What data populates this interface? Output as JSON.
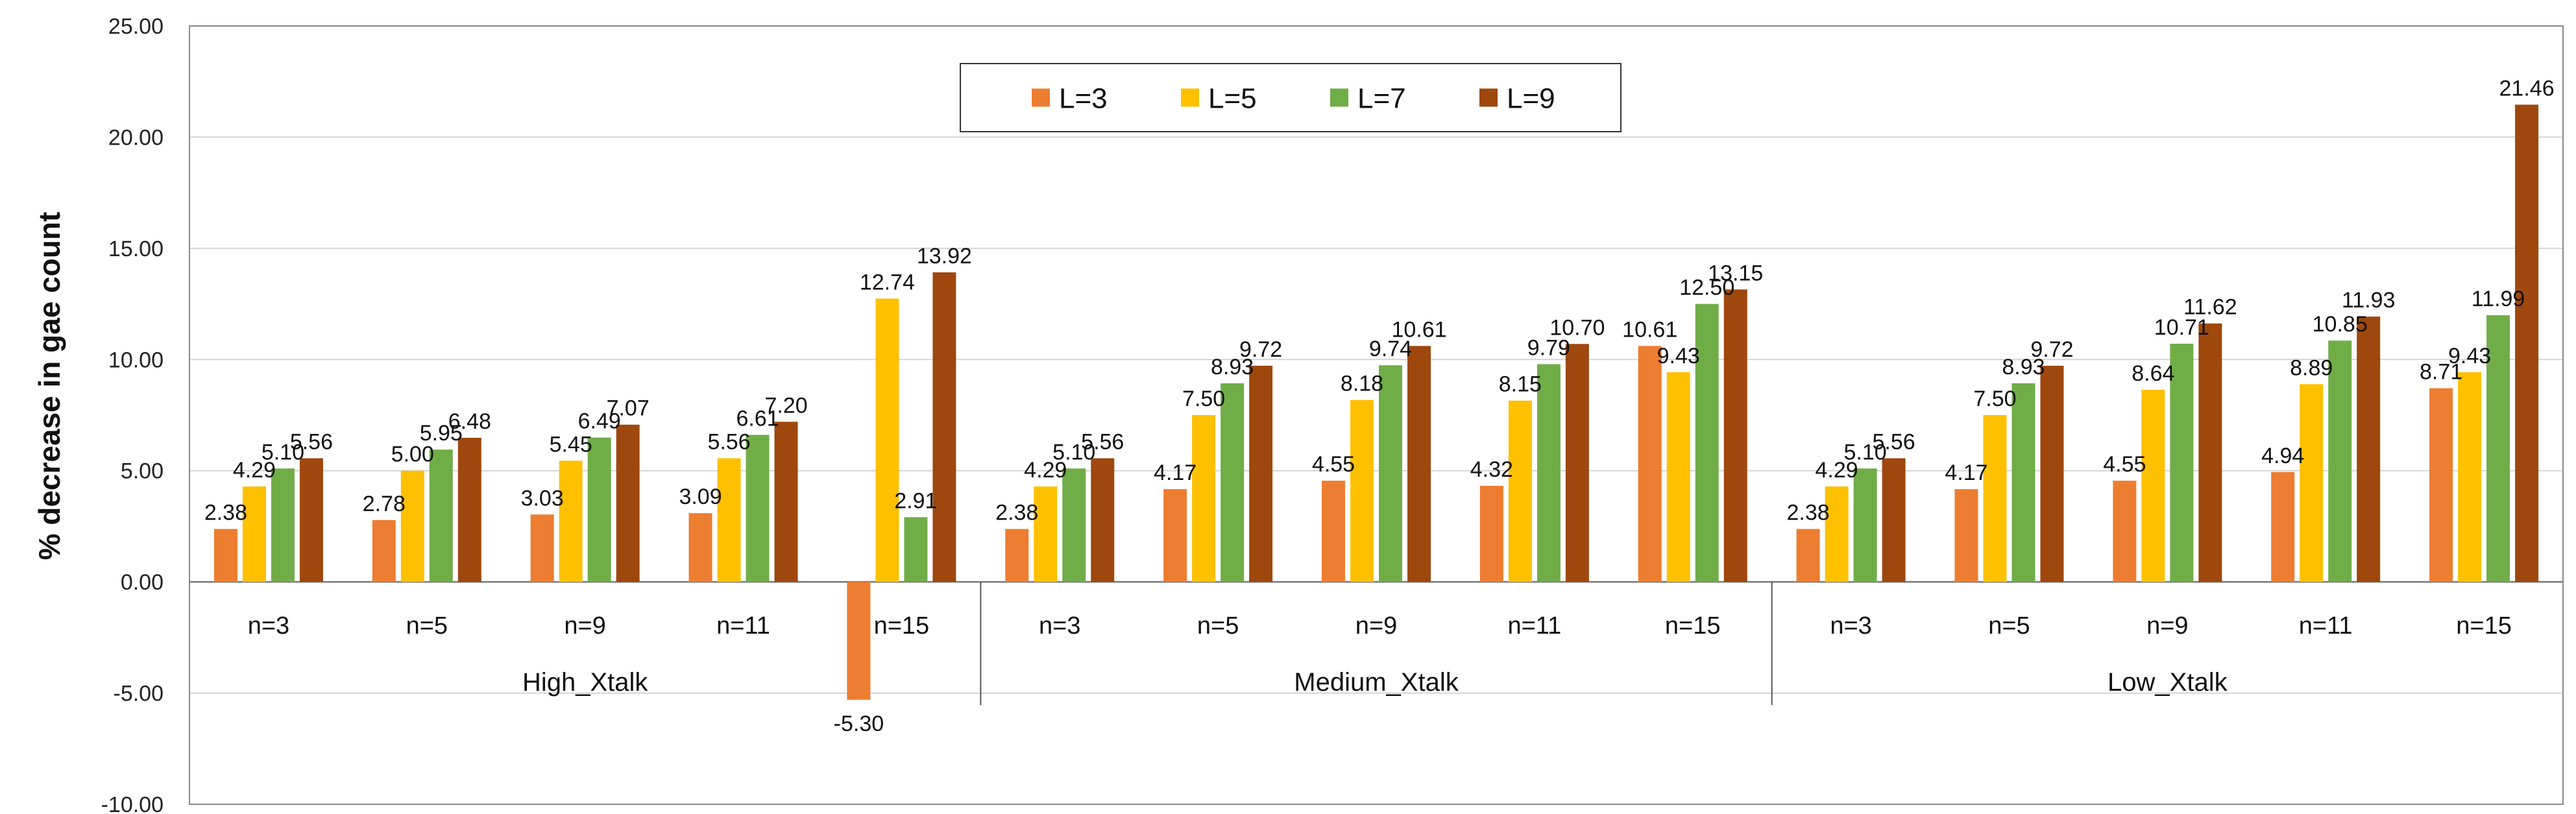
{
  "chart_data": {
    "type": "bar",
    "title": "",
    "xlabel": "",
    "ylabel": "% decrease in gae count",
    "ylim": [
      -10,
      25
    ],
    "yticks": [
      -10,
      -5,
      0,
      5,
      10,
      15,
      20,
      25
    ],
    "ytick_labels": [
      "-10.00",
      "-5.00",
      "0.00",
      "5.00",
      "10.00",
      "15.00",
      "20.00",
      "25.00"
    ],
    "grid": true,
    "legend_position": "top-center",
    "groups": [
      {
        "name": "High_Xtalk",
        "categories": [
          "n=3",
          "n=5",
          "n=9",
          "n=11",
          "n=15"
        ]
      },
      {
        "name": "Medium_Xtalk",
        "categories": [
          "n=3",
          "n=5",
          "n=9",
          "n=11",
          "n=15"
        ]
      },
      {
        "name": "Low_Xtalk",
        "categories": [
          "n=3",
          "n=5",
          "n=9",
          "n=11",
          "n=15"
        ]
      }
    ],
    "series": [
      {
        "name": "L=3",
        "color": "#ED7D31",
        "values": [
          2.38,
          2.78,
          3.03,
          3.09,
          -5.3,
          2.38,
          4.17,
          4.55,
          4.32,
          10.61,
          2.38,
          4.17,
          4.55,
          4.94,
          8.71
        ],
        "labels": [
          "2.38",
          "2.78",
          "3.03",
          "3.09",
          "-5.30",
          "2.38",
          "4.17",
          "4.55",
          "4.32",
          "10.61",
          "2.38",
          "4.17",
          "4.55",
          "4.94",
          "8.71"
        ]
      },
      {
        "name": "L=5",
        "color": "#FFC000",
        "values": [
          4.29,
          5.0,
          5.45,
          5.56,
          12.74,
          4.29,
          7.5,
          8.18,
          8.15,
          9.43,
          4.29,
          7.5,
          8.64,
          8.89,
          9.43
        ],
        "labels": [
          "4.29",
          "5.00",
          "5.45",
          "5.56",
          "12.74",
          "4.29",
          "7.50",
          "8.18",
          "8.15",
          "9.43",
          "4.29",
          "7.50",
          "8.64",
          "8.89",
          "9.43"
        ]
      },
      {
        "name": "L=7",
        "color": "#70AD47",
        "values": [
          5.1,
          5.95,
          6.49,
          6.61,
          2.91,
          5.1,
          8.93,
          9.74,
          9.79,
          12.5,
          5.1,
          8.93,
          10.71,
          10.85,
          11.99
        ],
        "labels": [
          "5.10",
          "5.95",
          "6.49",
          "6.61",
          "2.91",
          "5.10",
          "8.93",
          "9.74",
          "9.79",
          "12.50",
          "5.10",
          "8.93",
          "10.71",
          "10.85",
          "11.99"
        ]
      },
      {
        "name": "L=9",
        "color": "#9E480E",
        "values": [
          5.56,
          6.48,
          7.07,
          7.2,
          13.92,
          5.56,
          9.72,
          10.61,
          10.7,
          13.15,
          5.56,
          9.72,
          11.62,
          11.93,
          21.46
        ],
        "labels": [
          "5.56",
          "6.48",
          "7.07",
          "7.20",
          "13.92",
          "5.56",
          "9.72",
          "10.61",
          "10.70",
          "13.15",
          "5.56",
          "9.72",
          "11.62",
          "11.93",
          "21.46"
        ]
      }
    ]
  }
}
